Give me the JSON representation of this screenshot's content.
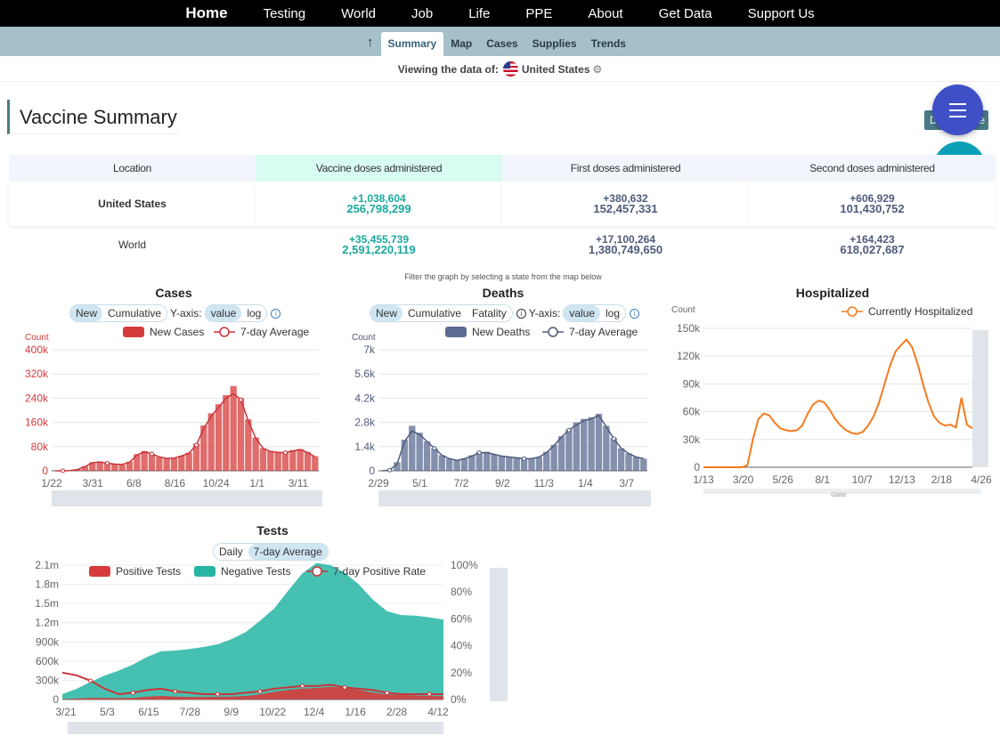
{
  "nav": {
    "items": [
      "Home",
      "Testing",
      "World",
      "Job",
      "Life",
      "PPE",
      "About",
      "Get Data",
      "Support Us"
    ]
  },
  "subnav": {
    "tabs": [
      "Summary",
      "Map",
      "Cases",
      "Supplies",
      "Trends"
    ],
    "active": "Summary"
  },
  "viewing": {
    "label": "Viewing the data of:",
    "country": "United States"
  },
  "section_title": "Vaccine Summary",
  "download_label": "D",
  "download_label_tail": "e",
  "vaccine_table": {
    "headers": [
      "Location",
      "Vaccine doses administered",
      "First doses administered",
      "Second doses administered"
    ],
    "rows": [
      {
        "location": "United States",
        "doses_inc": "+1,038,604",
        "doses_total": "256,798,299",
        "first_inc": "+380,632",
        "first_total": "152,457,331",
        "second_inc": "+606,929",
        "second_total": "101,430,752"
      },
      {
        "location": "World",
        "doses_inc": "+35,455,739",
        "doses_total": "2,591,220,119",
        "first_inc": "+17,100,264",
        "first_total": "1,380,749,650",
        "second_inc": "+164,423",
        "second_total": "618,027,687"
      }
    ]
  },
  "filter_note": "Filter the graph  by selecting a state from the map below",
  "cases_ui": {
    "title": "Cases",
    "toggle": [
      "New",
      "Cumulative"
    ],
    "yaxis_label": "Y-axis:",
    "yaxis_opts": [
      "value",
      "log"
    ]
  },
  "deaths_ui": {
    "title": "Deaths",
    "toggle": [
      "New",
      "Cumulative",
      "Fatality"
    ],
    "yaxis_label": "Y-axis:",
    "yaxis_opts": [
      "value",
      "log"
    ]
  },
  "hosp_ui": {
    "title": "Hospitalized"
  },
  "tests_ui": {
    "title": "Tests",
    "toggle": [
      "Daily",
      "7-day Average"
    ]
  },
  "colors": {
    "cases": "#d63b3b",
    "deaths": "#5c6b93",
    "hosp": "#f47a1f",
    "negative": "#26b5a2",
    "positive": "#d63b3b"
  },
  "chart_data": [
    {
      "type": "bar",
      "title": "Cases",
      "ylabel": "Count",
      "ylim": [
        0,
        400000
      ],
      "yticks": [
        "400k",
        "320k",
        "240k",
        "160k",
        "80k",
        "0"
      ],
      "xticks": [
        "1/22",
        "3/31",
        "6/8",
        "8/16",
        "10/24",
        "1/1",
        "3/11"
      ],
      "series": [
        {
          "name": "New Cases",
          "values": [
            0,
            0,
            1000,
            5000,
            15000,
            28000,
            30000,
            25000,
            22000,
            20000,
            30000,
            55000,
            65000,
            55000,
            45000,
            40000,
            42000,
            50000,
            60000,
            90000,
            150000,
            190000,
            220000,
            250000,
            280000,
            240000,
            170000,
            110000,
            75000,
            65000,
            62000,
            60000,
            68000,
            72000,
            62000,
            48000
          ]
        },
        {
          "name": "7-day Average",
          "values": [
            0,
            0,
            1000,
            4000,
            14000,
            27000,
            29000,
            25000,
            22000,
            21000,
            28000,
            52000,
            63000,
            56000,
            46000,
            41000,
            42000,
            49000,
            58000,
            85000,
            140000,
            180000,
            210000,
            240000,
            255000,
            235000,
            165000,
            108000,
            74000,
            64000,
            61000,
            60000,
            66000,
            70000,
            60000,
            46000
          ]
        }
      ]
    },
    {
      "type": "bar",
      "title": "Deaths",
      "ylabel": "Count",
      "ylim": [
        0,
        7000
      ],
      "yticks": [
        "7k",
        "5.6k",
        "4.2k",
        "2.8k",
        "1.4k",
        "0"
      ],
      "xticks": [
        "2/29",
        "5/1",
        "7/2",
        "9/2",
        "11/3",
        "1/4",
        "3/7"
      ],
      "series": [
        {
          "name": "New Deaths",
          "values": [
            0,
            50,
            500,
            1800,
            2600,
            2200,
            1700,
            1300,
            900,
            700,
            600,
            700,
            900,
            1100,
            1100,
            950,
            850,
            800,
            750,
            700,
            700,
            800,
            1100,
            1500,
            2000,
            2400,
            2800,
            3000,
            3100,
            3300,
            2600,
            1900,
            1300,
            1000,
            800,
            700
          ]
        },
        {
          "name": "7-day Average",
          "values": [
            0,
            40,
            400,
            1700,
            2300,
            2100,
            1700,
            1300,
            900,
            700,
            600,
            700,
            850,
            1050,
            1050,
            950,
            850,
            800,
            750,
            700,
            700,
            800,
            1050,
            1450,
            1950,
            2350,
            2650,
            2900,
            3000,
            3200,
            2550,
            1850,
            1300,
            1000,
            800,
            700
          ]
        }
      ]
    },
    {
      "type": "line",
      "title": "Hospitalized",
      "ylabel": "Count",
      "xlabel": "date",
      "ylim": [
        0,
        150000
      ],
      "yticks": [
        "150k",
        "120k",
        "90k",
        "60k",
        "30k",
        "0"
      ],
      "xticks": [
        "1/13",
        "3/20",
        "5/26",
        "8/1",
        "10/7",
        "12/13",
        "2/18",
        "4/26"
      ],
      "series": [
        {
          "name": "Currently Hospitalized",
          "values": [
            0,
            0,
            0,
            0,
            0,
            0,
            0,
            0,
            2000,
            30000,
            52000,
            58000,
            56000,
            48000,
            42000,
            40000,
            39000,
            40000,
            45000,
            58000,
            68000,
            72000,
            70000,
            62000,
            52000,
            45000,
            40000,
            37000,
            36000,
            38000,
            45000,
            55000,
            70000,
            90000,
            110000,
            125000,
            132000,
            138000,
            130000,
            112000,
            90000,
            70000,
            55000,
            48000,
            45000,
            46000,
            43000,
            75000,
            46000,
            42000
          ]
        }
      ]
    },
    {
      "type": "area",
      "title": "Tests",
      "ylim_left": [
        0,
        2100000
      ],
      "ylim_right": [
        0,
        100
      ],
      "yticks_left": [
        "2.1m",
        "1.8m",
        "1.5m",
        "1.2m",
        "900k",
        "600k",
        "300k",
        "0"
      ],
      "yticks_right": [
        "100%",
        "80%",
        "60%",
        "40%",
        "20%",
        "0%"
      ],
      "xticks": [
        "3/21",
        "5/3",
        "6/15",
        "7/28",
        "9/9",
        "10/22",
        "12/4",
        "1/16",
        "2/28",
        "4/12"
      ],
      "series": [
        {
          "name": "Positive Tests",
          "values": [
            5000,
            15000,
            25000,
            25000,
            22000,
            25000,
            45000,
            55000,
            45000,
            40000,
            40000,
            42000,
            45000,
            55000,
            80000,
            120000,
            150000,
            170000,
            180000,
            200000,
            180000,
            150000,
            110000,
            80000,
            70000,
            62000,
            55000,
            50000
          ]
        },
        {
          "name": "Negative Tests",
          "values": [
            80000,
            150000,
            250000,
            350000,
            430000,
            520000,
            620000,
            700000,
            720000,
            750000,
            780000,
            820000,
            900000,
            1000000,
            1150000,
            1300000,
            1550000,
            1800000,
            1950000,
            1900000,
            1800000,
            1650000,
            1450000,
            1300000,
            1250000,
            1250000,
            1230000,
            1200000
          ]
        },
        {
          "name": "7-day Positive Rate",
          "values": [
            20,
            18,
            14,
            8,
            4,
            5,
            7,
            8,
            6,
            5,
            4,
            4,
            4,
            5,
            6,
            8,
            9,
            10,
            10,
            11,
            9,
            8,
            7,
            5,
            4,
            4,
            4,
            4
          ]
        }
      ]
    }
  ]
}
